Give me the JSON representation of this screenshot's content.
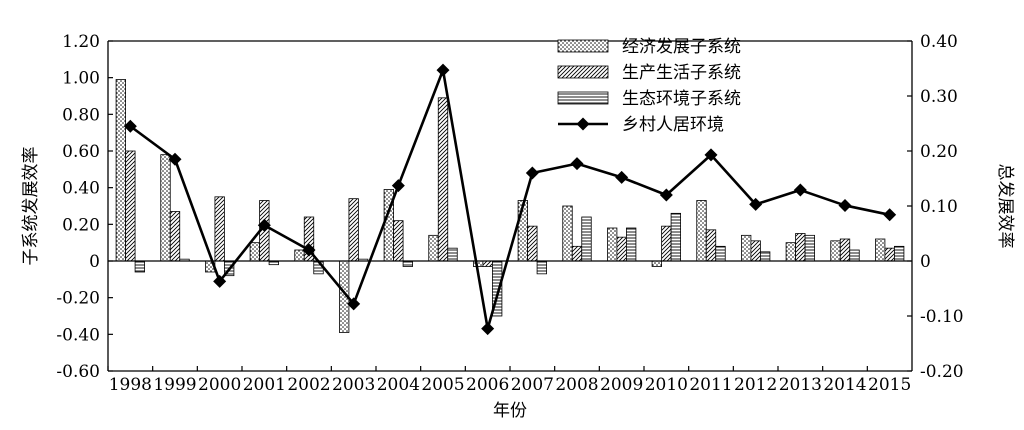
{
  "chart_data": {
    "type": "bar",
    "title": "",
    "xlabel": "年份",
    "ylabel": "子系统发展效率",
    "y2label": "总发展效率",
    "categories": [
      "1998",
      "1999",
      "2000",
      "2001",
      "2002",
      "2003",
      "2004",
      "2005",
      "2006",
      "2007",
      "2008",
      "2009",
      "2010",
      "2011",
      "2012",
      "2013",
      "2014",
      "2015"
    ],
    "ylim": [
      -0.6,
      1.2
    ],
    "yticks": [
      "-0.60",
      "-0.40",
      "-0.20",
      "0",
      "0.20",
      "0.40",
      "0.60",
      "0.80",
      "1.00",
      "1.20"
    ],
    "y2lim": [
      -0.2,
      0.4
    ],
    "y2ticks": [
      "-0.20",
      "-0.10",
      "0",
      "0.10",
      "0.20",
      "0.30",
      "0.40"
    ],
    "grid": false,
    "legend_position": "top-right",
    "series": [
      {
        "name": "经济发展子系统",
        "type": "bar",
        "axis": "left",
        "pattern": "dots",
        "values": [
          0.99,
          0.58,
          -0.06,
          0.1,
          0.06,
          -0.39,
          0.39,
          0.14,
          -0.03,
          0.33,
          0.3,
          0.18,
          -0.03,
          0.33,
          0.14,
          0.1,
          0.11,
          0.12
        ]
      },
      {
        "name": "生产生活子系统",
        "type": "bar",
        "axis": "left",
        "pattern": "diagonal",
        "values": [
          0.6,
          0.27,
          0.35,
          0.33,
          0.24,
          0.34,
          0.22,
          0.89,
          -0.03,
          0.19,
          0.08,
          0.13,
          0.19,
          0.17,
          0.11,
          0.15,
          0.12,
          0.07
        ]
      },
      {
        "name": "生态环境子系统",
        "type": "bar",
        "axis": "left",
        "pattern": "horizontal",
        "values": [
          -0.06,
          0.01,
          -0.08,
          -0.02,
          -0.07,
          0.01,
          -0.03,
          0.07,
          -0.3,
          -0.07,
          0.24,
          0.18,
          0.26,
          0.08,
          0.05,
          0.14,
          0.06,
          0.08
        ]
      },
      {
        "name": "乡村人居环境",
        "type": "line",
        "axis": "right",
        "marker": "diamond",
        "values": [
          0.245,
          0.185,
          -0.037,
          0.065,
          0.02,
          -0.078,
          0.137,
          0.347,
          -0.123,
          0.16,
          0.177,
          0.152,
          0.12,
          0.193,
          0.103,
          0.129,
          0.101,
          0.084
        ]
      }
    ]
  }
}
